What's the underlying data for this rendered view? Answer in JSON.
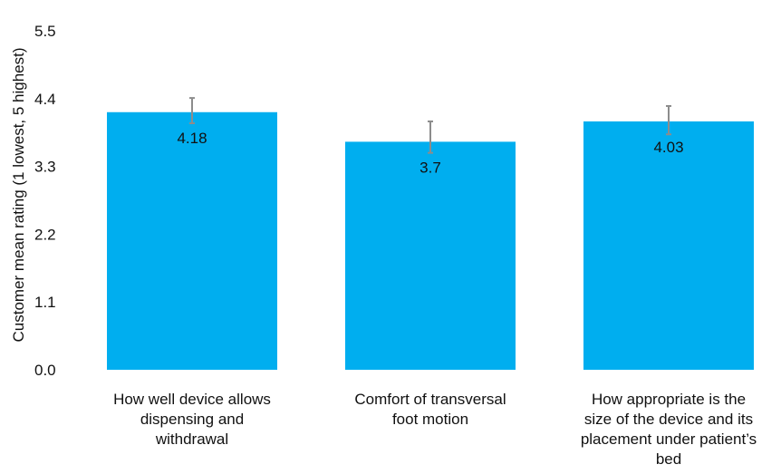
{
  "chart_data": {
    "type": "bar",
    "title": "",
    "xlabel": "",
    "ylabel": "Customer mean rating (1 lowest, 5 highest)",
    "ylim": [
      0,
      5.5
    ],
    "yticks": [
      "0.0",
      "1.1",
      "2.2",
      "3.3",
      "4.4",
      "5.5"
    ],
    "grid": false,
    "categories": [
      [
        "How well device allows",
        "dispensing and",
        "withdrawal"
      ],
      [
        "Comfort of transversal",
        "foot motion"
      ],
      [
        "How appropriate is the",
        "size of the device and its",
        "placement under patient’s",
        "bed"
      ]
    ],
    "values": [
      4.18,
      3.7,
      4.03
    ],
    "value_labels": [
      "4.18",
      "3.7",
      "4.03"
    ],
    "error_upper": [
      4.41,
      4.03,
      4.28
    ],
    "error_lower": [
      4.0,
      3.52,
      3.82
    ],
    "colors": {
      "bar": "#00AEEF",
      "error_bar": "#8C8C8C"
    }
  }
}
